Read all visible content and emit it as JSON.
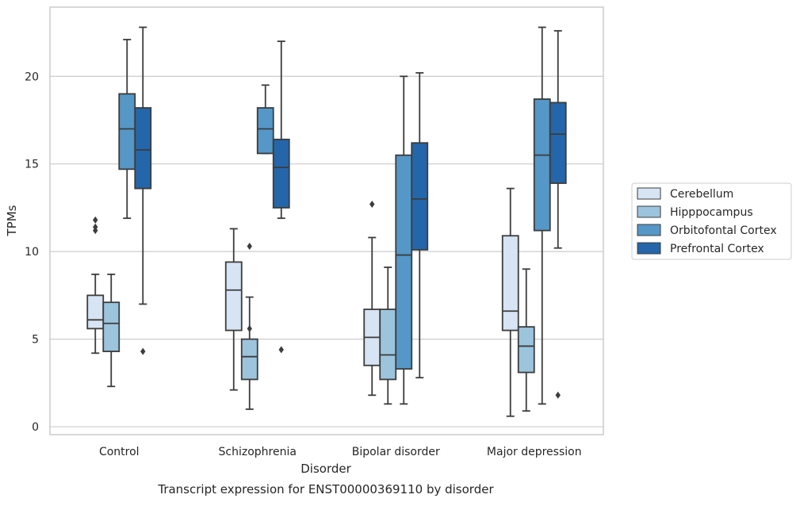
{
  "chart_data": {
    "type": "box",
    "caption": "Transcript expression for ENST00000369110 by disorder",
    "xlabel": "Disorder",
    "ylabel": "TPMs",
    "categories": [
      "Control",
      "Schizophrenia",
      "Bipolar disorder",
      "Major depression"
    ],
    "ylim": [
      -0.45,
      23.95
    ],
    "yticks": [
      0,
      5,
      10,
      15,
      20
    ],
    "grid": "horizontal",
    "legend_position": "right",
    "legend_labels": [
      "Cerebellum",
      "Hipppocampus",
      "Orbitofontal Cortex",
      "Prefrontal Cortex"
    ],
    "colors": [
      "#d6e4f3",
      "#9cc4dd",
      "#5597c7",
      "#2466a9"
    ],
    "series": [
      {
        "name": "Cerebellum",
        "color": "#d6e4f3",
        "boxes": [
          {
            "whisker_low": 4.2,
            "q1": 5.6,
            "median": 6.1,
            "q3": 7.5,
            "whisker_high": 8.7,
            "outliers": [
              11.2,
              11.4,
              11.8
            ]
          },
          {
            "whisker_low": 2.1,
            "q1": 5.5,
            "median": 7.8,
            "q3": 9.4,
            "whisker_high": 11.3,
            "outliers": []
          },
          {
            "whisker_low": 1.8,
            "q1": 3.5,
            "median": 5.1,
            "q3": 6.7,
            "whisker_high": 10.8,
            "outliers": [
              12.7
            ]
          },
          {
            "whisker_low": 0.6,
            "q1": 5.5,
            "median": 6.6,
            "q3": 10.9,
            "whisker_high": 13.6,
            "outliers": []
          }
        ]
      },
      {
        "name": "Hipppocampus",
        "color": "#9cc4dd",
        "boxes": [
          {
            "whisker_low": 2.3,
            "q1": 4.3,
            "median": 5.9,
            "q3": 7.1,
            "whisker_high": 8.7,
            "outliers": []
          },
          {
            "whisker_low": 1.0,
            "q1": 2.7,
            "median": 4.0,
            "q3": 5.0,
            "whisker_high": 7.4,
            "outliers": [
              5.6,
              10.3
            ]
          },
          {
            "whisker_low": 1.3,
            "q1": 2.7,
            "median": 4.1,
            "q3": 6.7,
            "whisker_high": 9.1,
            "outliers": []
          },
          {
            "whisker_low": 0.9,
            "q1": 3.1,
            "median": 4.6,
            "q3": 5.7,
            "whisker_high": 9.0,
            "outliers": []
          }
        ]
      },
      {
        "name": "Orbitofontal Cortex",
        "color": "#5597c7",
        "boxes": [
          {
            "whisker_low": 11.9,
            "q1": 14.7,
            "median": 17.0,
            "q3": 19.0,
            "whisker_high": 22.1,
            "outliers": []
          },
          {
            "whisker_low": 15.6,
            "q1": 15.6,
            "median": 17.0,
            "q3": 18.2,
            "whisker_high": 19.5,
            "outliers": []
          },
          {
            "whisker_low": 1.3,
            "q1": 3.3,
            "median": 9.8,
            "q3": 15.5,
            "whisker_high": 20.0,
            "outliers": []
          },
          {
            "whisker_low": 1.3,
            "q1": 11.2,
            "median": 15.5,
            "q3": 18.7,
            "whisker_high": 22.8,
            "outliers": []
          }
        ]
      },
      {
        "name": "Prefrontal Cortex",
        "color": "#2466a9",
        "boxes": [
          {
            "whisker_low": 7.0,
            "q1": 13.6,
            "median": 15.8,
            "q3": 18.2,
            "whisker_high": 22.8,
            "outliers": [
              4.3
            ]
          },
          {
            "whisker_low": 11.9,
            "q1": 12.5,
            "median": 14.8,
            "q3": 16.4,
            "whisker_high": 22.0,
            "outliers": [
              4.4
            ]
          },
          {
            "whisker_low": 2.8,
            "q1": 10.1,
            "median": 13.0,
            "q3": 16.2,
            "whisker_high": 20.2,
            "outliers": []
          },
          {
            "whisker_low": 10.2,
            "q1": 13.9,
            "median": 16.7,
            "q3": 18.5,
            "whisker_high": 22.6,
            "outliers": [
              1.8
            ]
          }
        ]
      }
    ]
  }
}
